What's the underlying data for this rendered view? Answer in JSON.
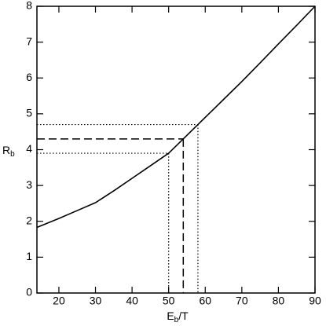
{
  "chart_data": {
    "type": "line",
    "xlabel": [
      "E",
      "b",
      "/T"
    ],
    "ylabel": [
      "R",
      "b"
    ],
    "x": [
      14,
      20,
      25,
      30,
      35,
      40,
      45,
      50,
      54,
      58,
      60,
      65,
      70,
      75,
      80,
      85,
      90
    ],
    "series": [
      {
        "color": "#000000",
        "values": [
          1.83,
          2.08,
          2.3,
          2.52,
          2.85,
          3.2,
          3.55,
          3.9,
          4.3,
          4.7,
          4.9,
          5.4,
          5.9,
          6.42,
          6.95,
          7.47,
          8.0
        ]
      }
    ],
    "reference_lines": [
      {
        "x": 50,
        "y": 3.9,
        "style": "dotted"
      },
      {
        "x": 54,
        "y": 4.3,
        "style": "dashed"
      },
      {
        "x": 58,
        "y": 4.7,
        "style": "dotted"
      }
    ],
    "xlim": [
      14,
      90
    ],
    "ylim": [
      0,
      8
    ],
    "xticks": [
      20,
      30,
      40,
      50,
      60,
      70,
      80,
      90
    ],
    "yticks": [
      0,
      1,
      2,
      3,
      4,
      5,
      6,
      7,
      8
    ]
  }
}
